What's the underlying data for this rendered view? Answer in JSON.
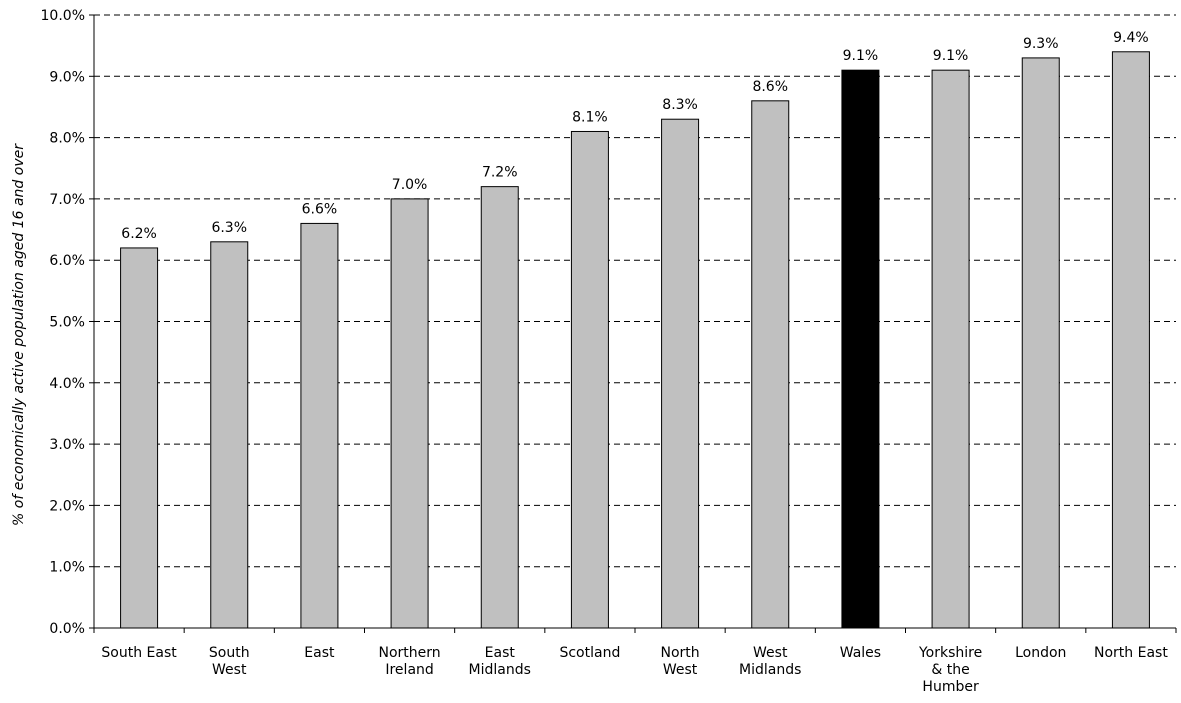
{
  "chart_data": {
    "type": "bar",
    "ylabel": "% of economically active population aged 16 and over",
    "xlabel": "",
    "ylim": [
      0,
      10
    ],
    "yticks": [
      "0.0%",
      "1.0%",
      "2.0%",
      "3.0%",
      "4.0%",
      "5.0%",
      "6.0%",
      "7.0%",
      "8.0%",
      "9.0%",
      "10.0%"
    ],
    "grid": "dashed horizontal",
    "categories": [
      [
        "South East"
      ],
      [
        "South",
        "West"
      ],
      [
        "East"
      ],
      [
        "Northern",
        "Ireland"
      ],
      [
        "East",
        "Midlands"
      ],
      [
        "Scotland"
      ],
      [
        "North",
        "West"
      ],
      [
        "West",
        "Midlands"
      ],
      [
        "Wales"
      ],
      [
        "Yorkshire",
        "& the",
        "Humber"
      ],
      [
        "London"
      ],
      [
        "North East"
      ]
    ],
    "values": [
      6.2,
      6.3,
      6.6,
      7.0,
      7.2,
      8.1,
      8.3,
      8.6,
      9.1,
      9.1,
      9.3,
      9.4
    ],
    "data_labels": [
      "6.2%",
      "6.3%",
      "6.6%",
      "7.0%",
      "7.2%",
      "8.1%",
      "8.3%",
      "8.6%",
      "9.1%",
      "9.1%",
      "9.3%",
      "9.4%"
    ],
    "highlight": "Wales",
    "colors": {
      "bar": "#c0c0c0",
      "highlight": "#000000",
      "outline": "#000000",
      "grid": "#000000"
    }
  }
}
